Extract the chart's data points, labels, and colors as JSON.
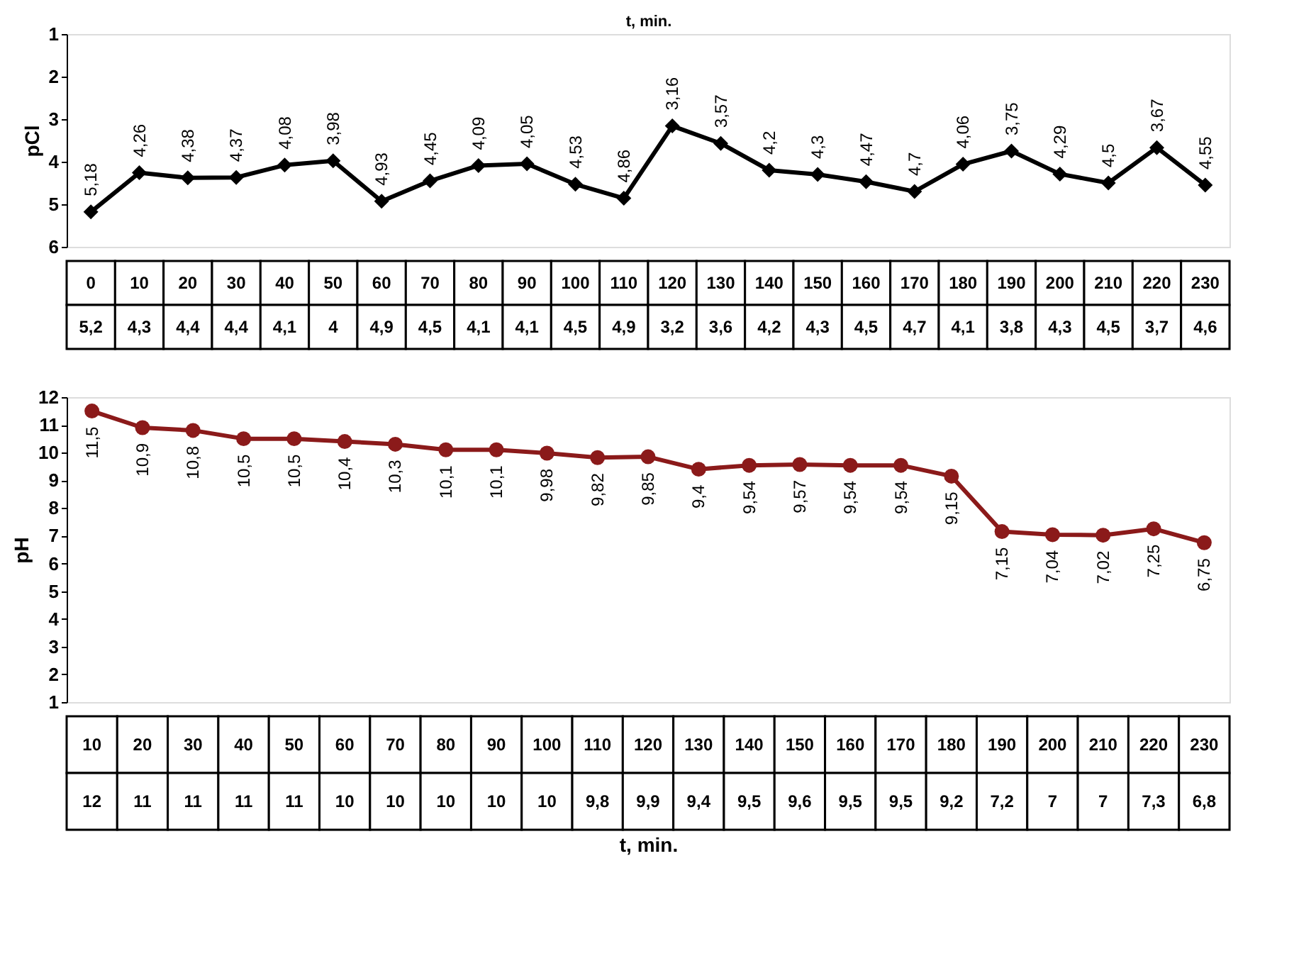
{
  "chart_data": [
    {
      "type": "line",
      "xlabel": "t, min.",
      "ylabel": "pCl",
      "color": "#000000",
      "marker": "diamond",
      "line_style": "solid",
      "grid": false,
      "categories": [
        "0",
        "10",
        "20",
        "30",
        "40",
        "50",
        "60",
        "70",
        "80",
        "90",
        "100",
        "110",
        "120",
        "130",
        "140",
        "150",
        "160",
        "170",
        "180",
        "190",
        "200",
        "210",
        "220",
        "230"
      ],
      "values": [
        5.18,
        4.26,
        4.38,
        4.37,
        4.08,
        3.98,
        4.93,
        4.45,
        4.09,
        4.05,
        4.53,
        4.86,
        3.16,
        3.57,
        4.2,
        4.3,
        4.47,
        4.7,
        4.06,
        3.75,
        4.29,
        4.5,
        3.67,
        4.55
      ],
      "value_labels": [
        "5,18",
        "4,26",
        "4,38",
        "4,37",
        "4,08",
        "3,98",
        "4,93",
        "4,45",
        "4,09",
        "4,05",
        "4,53",
        "4,86",
        "3,16",
        "3,57",
        "4,2",
        "4,3",
        "4,47",
        "4,7",
        "4,06",
        "3,75",
        "4,29",
        "4,5",
        "3,67",
        "4,55"
      ],
      "ylim": [
        6,
        1
      ],
      "yticks": [
        1,
        2,
        3,
        4,
        5,
        6
      ],
      "annotations": [
        "5,2",
        "4,3",
        "4,4",
        "4,4",
        "4,1",
        "4",
        "4,9",
        "4,5",
        "4,1",
        "4,1",
        "4,5",
        "4,9",
        "3,2",
        "3,6",
        "4,2",
        "4,3",
        "4,5",
        "4,7",
        "4,1",
        "3,8",
        "4,3",
        "4,5",
        "3,7",
        "4,6"
      ]
    },
    {
      "type": "line",
      "xlabel": "t, min.",
      "ylabel": "pH",
      "color": "#8b1a1a",
      "marker": "circle",
      "line_style": "solid",
      "grid": false,
      "categories": [
        "10",
        "20",
        "30",
        "40",
        "50",
        "60",
        "70",
        "80",
        "90",
        "100",
        "110",
        "120",
        "130",
        "140",
        "150",
        "160",
        "170",
        "180",
        "190",
        "200",
        "210",
        "220",
        "230"
      ],
      "values": [
        11.5,
        10.9,
        10.8,
        10.5,
        10.5,
        10.4,
        10.3,
        10.1,
        10.1,
        9.98,
        9.82,
        9.85,
        9.4,
        9.54,
        9.57,
        9.54,
        9.54,
        9.15,
        7.15,
        7.04,
        7.02,
        7.25,
        6.75
      ],
      "value_labels": [
        "11,5",
        "10,9",
        "10,8",
        "10,5",
        "10,5",
        "10,4",
        "10,3",
        "10,1",
        "10,1",
        "9,98",
        "9,82",
        "9,85",
        "9,4",
        "9,54",
        "9,57",
        "9,54",
        "9,54",
        "9,15",
        "7,15",
        "7,04",
        "7,02",
        "7,25",
        "6,75"
      ],
      "ylim": [
        1,
        12
      ],
      "yticks": [
        1,
        2,
        3,
        4,
        5,
        6,
        7,
        8,
        9,
        10,
        11,
        12
      ],
      "annotations": [
        "12",
        "11",
        "11",
        "11",
        "11",
        "10",
        "10",
        "10",
        "10",
        "10",
        "9,8",
        "9,9",
        "9,4",
        "9,5",
        "9,6",
        "9,5",
        "9,5",
        "9,2",
        "7,2",
        "7",
        "7",
        "7,3",
        "6,8"
      ]
    }
  ]
}
